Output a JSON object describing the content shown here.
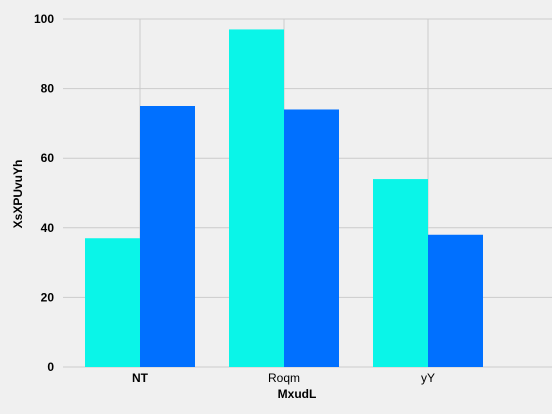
{
  "chart_data": {
    "type": "bar",
    "title": "",
    "xlabel": "MxudL",
    "ylabel": "XsXPUvuYh",
    "categories": [
      "NT",
      "Roqm",
      "yY"
    ],
    "bold_categories": [
      "NT"
    ],
    "series": [
      {
        "values": [
          37,
          97,
          54
        ],
        "color": "#0af5e8"
      },
      {
        "values": [
          75,
          74,
          38
        ],
        "color": "#0070ff"
      }
    ],
    "ylim": [
      0,
      100
    ],
    "yticks": [
      0,
      20,
      40,
      60,
      80,
      100
    ],
    "grid": true,
    "legend": "none",
    "background": "#f0f0f0",
    "grid_color": "#cbcbcb"
  }
}
